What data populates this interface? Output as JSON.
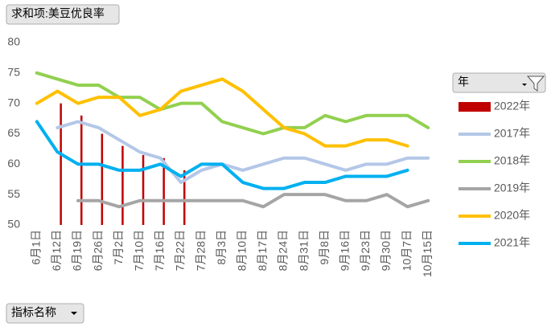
{
  "chart_data": {
    "type": "line",
    "field_button": "求和项:美豆优良率",
    "category_button": "指标名称",
    "legend_title": "年",
    "categories": [
      "6月1日",
      "6月12日",
      "6月19日",
      "6月26日",
      "7月2日",
      "7月10日",
      "7月16日",
      "7月22日",
      "7月28日",
      "8月3日",
      "8月10日",
      "8月17日",
      "8月24日",
      "8月31日",
      "9月8日",
      "9月16日",
      "9月23日",
      "9月30日",
      "10月7日",
      "10月15日"
    ],
    "ylim": [
      50,
      80
    ],
    "yticks": [
      50,
      55,
      60,
      65,
      70,
      75,
      80
    ],
    "series": [
      {
        "name": "2022年",
        "type": "bar",
        "color": "#c00000",
        "values": [
          null,
          70,
          68,
          65,
          63,
          61.5,
          61,
          59,
          null,
          null,
          null,
          null,
          null,
          null,
          null,
          null,
          null,
          null,
          null,
          null
        ]
      },
      {
        "name": "2017年",
        "color": "#b4c7e7",
        "values": [
          null,
          66,
          67,
          66,
          64,
          62,
          61,
          57,
          59,
          60,
          59,
          60,
          61,
          61,
          60,
          59,
          60,
          60,
          61,
          61
        ]
      },
      {
        "name": "2018年",
        "color": "#92d050",
        "values": [
          75,
          74,
          73,
          73,
          71,
          71,
          69,
          70,
          70,
          67,
          66,
          65,
          66,
          66,
          68,
          67,
          68,
          68,
          68,
          66
        ]
      },
      {
        "name": "2019年",
        "color": "#a5a5a5",
        "values": [
          null,
          null,
          54,
          54,
          53,
          54,
          54,
          54,
          54,
          54,
          54,
          53,
          55,
          55,
          55,
          54,
          54,
          55,
          53,
          54
        ]
      },
      {
        "name": "2020年",
        "color": "#ffc000",
        "values": [
          70,
          72,
          70,
          71,
          71,
          68,
          69,
          72,
          73,
          74,
          72,
          69,
          66,
          65,
          63,
          63,
          64,
          64,
          63,
          null
        ]
      },
      {
        "name": "2021年",
        "color": "#00b0f0",
        "values": [
          67,
          62,
          60,
          60,
          59,
          59,
          60,
          58,
          60,
          60,
          57,
          56,
          56,
          57,
          57,
          58,
          58,
          58,
          59,
          null
        ]
      }
    ]
  }
}
